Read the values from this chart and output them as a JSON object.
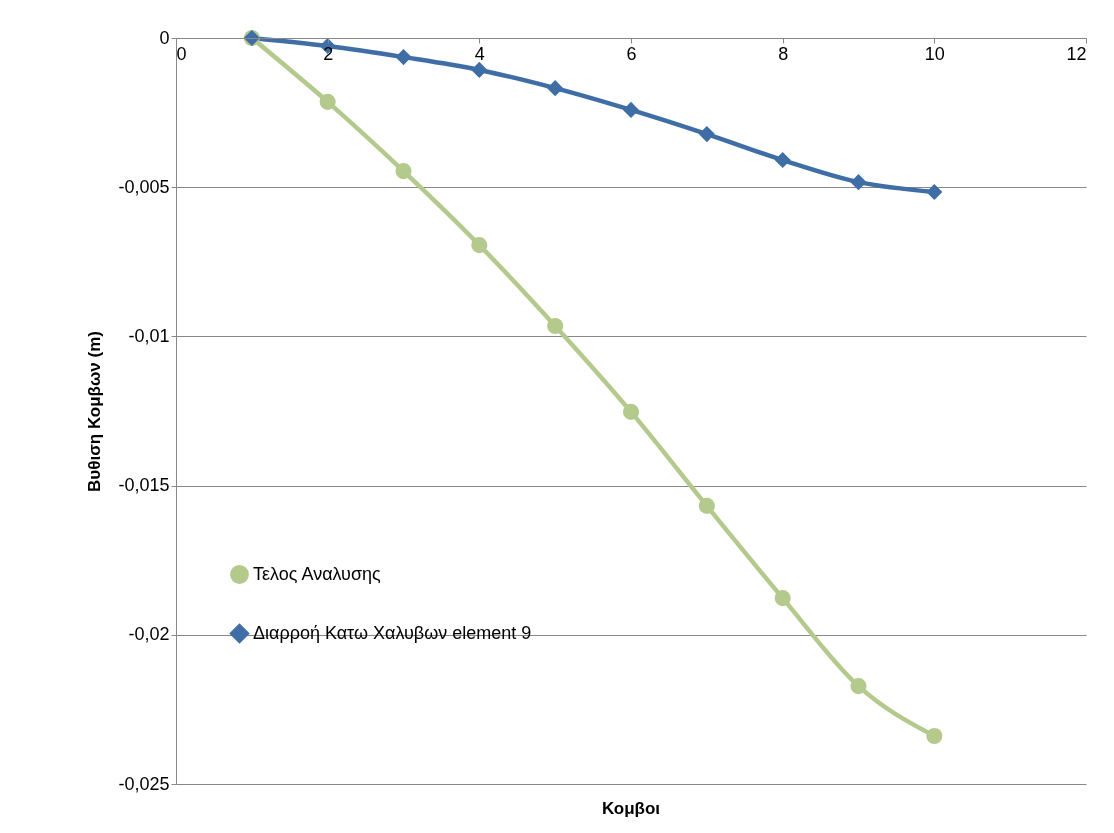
{
  "chart_data": {
    "type": "line",
    "xlabel": "Κομβοι",
    "ylabel": "Βυθιση Κομβων (m)",
    "xlim": [
      0,
      12
    ],
    "xticks": [
      0,
      2,
      4,
      6,
      8,
      10,
      12
    ],
    "ylim": [
      -0.025,
      0
    ],
    "yticks": [
      {
        "value": -0.025,
        "label": "-0,025"
      },
      {
        "value": -0.02,
        "label": "-0,02"
      },
      {
        "value": -0.015,
        "label": "-0,015"
      },
      {
        "value": -0.01,
        "label": "-0,01"
      },
      {
        "value": -0.005,
        "label": "-0,005"
      },
      0
    ],
    "grid": "y",
    "legend": "bottom left",
    "x": [
      1,
      2,
      3,
      4,
      5,
      6,
      7,
      8,
      9,
      10
    ],
    "series": [
      {
        "name": "Τελος Αναλυσης",
        "color": "#b4c98c",
        "marker": "circle",
        "values": [
          0,
          -0.00214,
          -0.00446,
          -0.00694,
          -0.00965,
          -0.01253,
          -0.01568,
          -0.01877,
          -0.02172,
          -0.02339
        ]
      },
      {
        "name": "Διαρροή Κατω Χαλυβων element 9",
        "color": "#3f6ea6",
        "marker": "diamond",
        "values": [
          0,
          -0.00027,
          -0.00064,
          -0.00107,
          -0.00168,
          -0.00241,
          -0.00322,
          -0.00409,
          -0.00483,
          -0.00516
        ]
      }
    ]
  }
}
